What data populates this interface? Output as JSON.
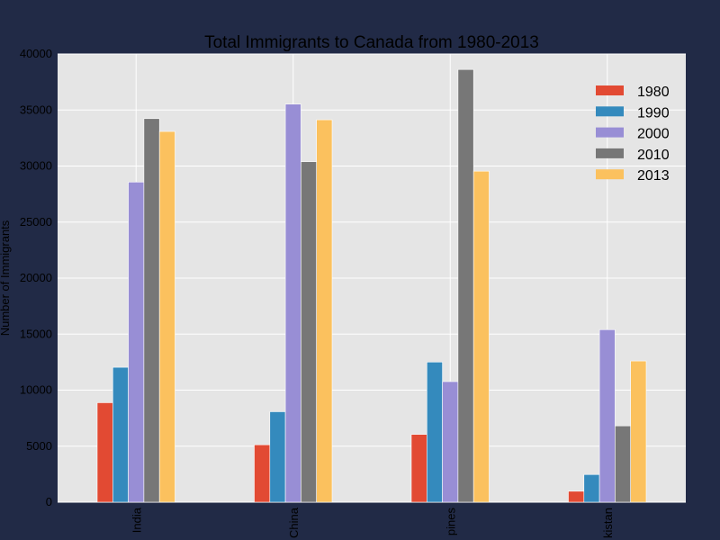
{
  "chart_data": {
    "type": "bar",
    "title": "Total Immigrants to Canada from 1980-2013",
    "xlabel": "",
    "ylabel": "Number of Immigrants",
    "categories": [
      "India",
      "China",
      "Philippines",
      "Pakistan"
    ],
    "visible_category_labels": [
      "India",
      "China",
      "pines",
      "kistan"
    ],
    "ylim": [
      0,
      40000
    ],
    "yticks": [
      "0",
      "5000",
      "10000",
      "15000",
      "20000",
      "25000",
      "30000",
      "35000",
      "40000"
    ],
    "series": [
      {
        "name": "1980",
        "color": "#e24a33",
        "values": [
          8880,
          5123,
          6051,
          978
        ]
      },
      {
        "name": "1990",
        "color": "#348abd",
        "values": [
          12041,
          8076,
          12509,
          2470
        ]
      },
      {
        "name": "2000",
        "color": "#988ed5",
        "values": [
          28572,
          35529,
          10763,
          15400
        ]
      },
      {
        "name": "2010",
        "color": "#777777",
        "values": [
          34235,
          30391,
          38617,
          6811
        ]
      },
      {
        "name": "2013",
        "color": "#fbc15e",
        "values": [
          33087,
          34129,
          29544,
          12603
        ]
      }
    ],
    "grid": true,
    "legend_position": "top-right"
  }
}
